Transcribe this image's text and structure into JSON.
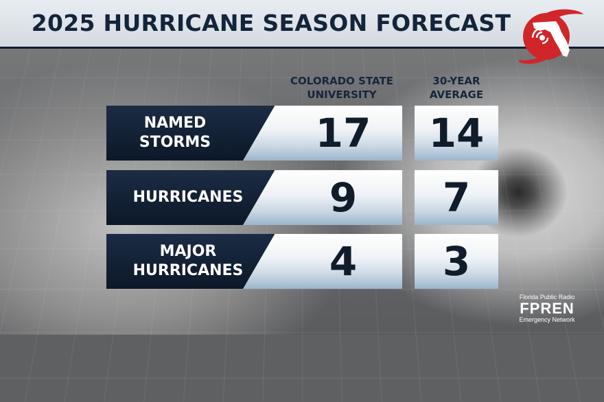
{
  "title": "2025 HURRICANE SEASON FORECAST",
  "logo": {
    "icon": "florida-hurricane-logo-icon",
    "color": "#d0262a"
  },
  "columns": {
    "csu": [
      "COLORADO STATE",
      "UNIVERSITY"
    ],
    "average": [
      "30-YEAR",
      "AVERAGE"
    ]
  },
  "rows": [
    {
      "label": [
        "NAMED",
        "STORMS"
      ],
      "csu": "17",
      "average": "14"
    },
    {
      "label": [
        "HURRICANES"
      ],
      "csu": "9",
      "average": "7"
    },
    {
      "label": [
        "MAJOR",
        "HURRICANES"
      ],
      "csu": "4",
      "average": "3"
    }
  ],
  "brand": {
    "top": "Florida Public Radio",
    "name": "FPREN",
    "bottom": "Emergency Network"
  },
  "colors": {
    "navy": "#14243a",
    "label_bg": "#0c1828",
    "accent_red": "#d0262a"
  }
}
